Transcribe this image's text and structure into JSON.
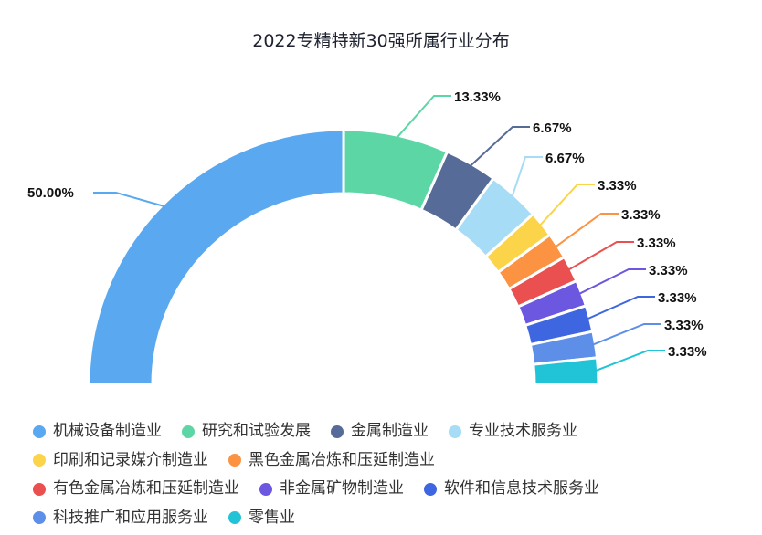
{
  "chart_data": {
    "type": "pie",
    "subtype": "half-donut",
    "title": "2022专精特新30强所属行业分布",
    "legend_position": "bottom",
    "categories": [
      "机械设备制造业",
      "研究和试验发展",
      "金属制造业",
      "专业技术服务业",
      "印刷和记录媒介制造业",
      "黑色金属冶炼和压延制造业",
      "有色金属冶炼和压延制造业",
      "非金属矿物制造业",
      "软件和信息技术服务业",
      "科技推广和应用服务业",
      "零售业"
    ],
    "values": [
      50.0,
      13.33,
      6.67,
      6.67,
      3.33,
      3.33,
      3.33,
      3.33,
      3.33,
      3.33,
      3.33
    ],
    "labels": [
      "50.00%",
      "13.33%",
      "6.67%",
      "6.67%",
      "3.33%",
      "3.33%",
      "3.33%",
      "3.33%",
      "3.33%",
      "3.33%",
      "3.33%"
    ],
    "colors": [
      "#5aa9f0",
      "#5dd6a6",
      "#566b97",
      "#a6dcf6",
      "#fcd44a",
      "#fb9342",
      "#ea5050",
      "#6b57e0",
      "#3e66e0",
      "#5d8ee8",
      "#21c3d7"
    ]
  }
}
